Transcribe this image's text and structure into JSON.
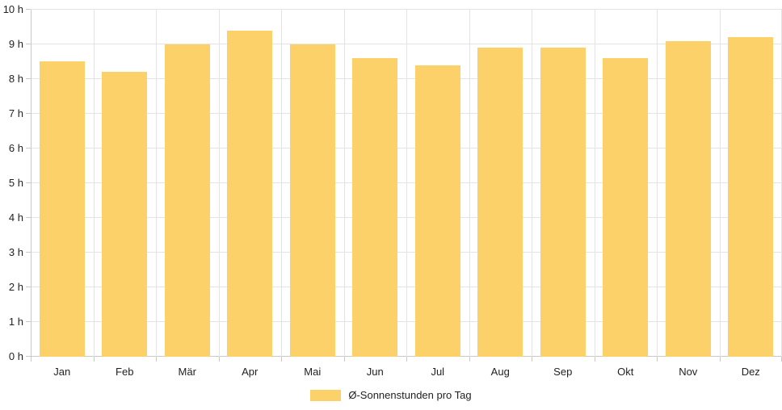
{
  "chart_data": {
    "type": "bar",
    "categories": [
      "Jan",
      "Feb",
      "Mär",
      "Apr",
      "Mai",
      "Jun",
      "Jul",
      "Aug",
      "Sep",
      "Okt",
      "Nov",
      "Dez"
    ],
    "values": [
      8.5,
      8.2,
      9.0,
      9.4,
      9.0,
      8.6,
      8.4,
      8.9,
      8.9,
      8.6,
      9.1,
      9.2
    ],
    "title": "",
    "xlabel": "",
    "ylabel": "",
    "ylim": [
      0,
      10
    ],
    "ytick_labels": [
      "0 h",
      "1 h",
      "2 h",
      "3 h",
      "4 h",
      "5 h",
      "6 h",
      "7 h",
      "8 h",
      "9 h",
      "10 h"
    ],
    "grid": true,
    "legend": {
      "position": "bottom",
      "items": [
        {
          "label": "Ø-Sonnenstunden pro Tag",
          "color": "#FCD169"
        }
      ]
    }
  },
  "colors": {
    "bar": "#FCD169",
    "grid": "#E4E4E4",
    "axis": "#C9C9C9",
    "text": "#222222",
    "background": "#FFFFFF"
  }
}
